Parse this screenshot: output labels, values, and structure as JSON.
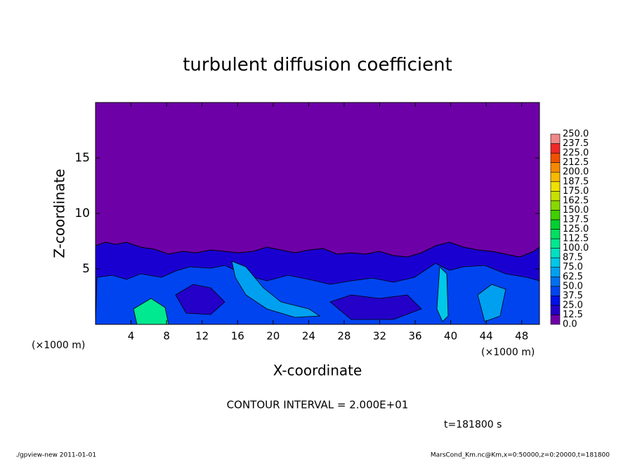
{
  "chart_data": {
    "type": "contour",
    "title": "turbulent diffusion coefficient",
    "xlabel": "X-coordinate",
    "ylabel": "Z-coordinate",
    "x_unit_labels": [
      "(×1000 m)",
      "(×1000 m)"
    ],
    "xlim": [
      0,
      50
    ],
    "xticks": [
      4,
      8,
      12,
      16,
      20,
      24,
      28,
      32,
      36,
      40,
      44,
      48
    ],
    "ylim": [
      0,
      20
    ],
    "yticks": [
      5,
      10,
      15
    ],
    "background_color": "#6e00a8",
    "colorbar": {
      "levels": [
        {
          "value": 0,
          "label": "0.0"
        },
        12.5,
        {
          "value": 25,
          "label": "25.0"
        },
        37.5,
        {
          "value": 50,
          "label": "50.0"
        },
        62.5,
        {
          "value": 75,
          "label": "75.0"
        },
        87.5,
        {
          "value": 100,
          "label": "100.0"
        },
        112.5,
        {
          "value": 125,
          "label": "125.0"
        },
        137.5,
        {
          "value": 150,
          "label": "150.0"
        },
        162.5,
        {
          "value": 175,
          "label": "175.0"
        },
        187.5,
        {
          "value": 200,
          "label": "200.0"
        },
        212.5,
        {
          "value": 225,
          "label": "225.0"
        },
        237.5,
        {
          "value": 250,
          "label": "250.0"
        }
      ],
      "colors": [
        "#6e00a8",
        "#2400c8",
        "#0010e8",
        "#0044f0",
        "#0070f0",
        "#00a0f0",
        "#00c8e8",
        "#00e0c0",
        "#00e890",
        "#00e060",
        "#00d030",
        "#40d000",
        "#88d800",
        "#c8e000",
        "#f0e000",
        "#f8b800",
        "#f88800",
        "#f05000",
        "#f02828",
        "#f08888"
      ]
    },
    "contour_interval": "CONTOUR INTERVAL = 2.000E+01",
    "time_label": "t=181800 s",
    "footer_left": "./gpview-new   2011-01-01",
    "footer_right": "MarsCond_Km.nc@Km,x=0:50000,z=0:20000,t=181800"
  }
}
